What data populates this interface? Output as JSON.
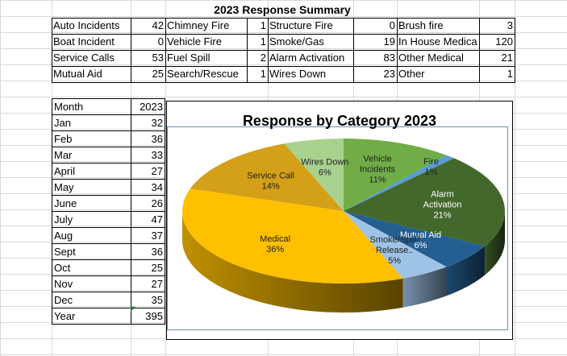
{
  "summary": {
    "title": "2023 Response Summary",
    "rows": [
      [
        {
          "label": "Auto Incidents",
          "value": "42"
        },
        {
          "label": "Chimney Fire",
          "value": "1"
        },
        {
          "label": "Structure Fire",
          "value": "0"
        },
        {
          "label": "Brush fire",
          "value": "3"
        }
      ],
      [
        {
          "label": "Boat Incident",
          "value": "0"
        },
        {
          "label": "Vehicle Fire",
          "value": "1"
        },
        {
          "label": "Smoke/Gas",
          "value": "19"
        },
        {
          "label": "In House Medica",
          "value": "120"
        }
      ],
      [
        {
          "label": "Service Calls",
          "value": "53"
        },
        {
          "label": "Fuel Spill",
          "value": "2"
        },
        {
          "label": "Alarm Activation",
          "value": "83"
        },
        {
          "label": "Other Medical",
          "value": "21"
        }
      ],
      [
        {
          "label": "Mutual Aid",
          "value": "25"
        },
        {
          "label": "Search/Rescue",
          "value": "1"
        },
        {
          "label": "Wires Down",
          "value": "23"
        },
        {
          "label": "Other",
          "value": "1"
        }
      ]
    ]
  },
  "monthly": {
    "header": {
      "label": "Month",
      "value": "2023"
    },
    "rows": [
      {
        "label": "Jan",
        "value": "32"
      },
      {
        "label": "Feb",
        "value": "36"
      },
      {
        "label": "Mar",
        "value": "33"
      },
      {
        "label": "April",
        "value": "27"
      },
      {
        "label": "May",
        "value": "34"
      },
      {
        "label": "June",
        "value": "26"
      },
      {
        "label": "July",
        "value": "47"
      },
      {
        "label": "Aug",
        "value": "37"
      },
      {
        "label": "Sept",
        "value": "36"
      },
      {
        "label": "Oct",
        "value": "25"
      },
      {
        "label": "Nov",
        "value": "27"
      },
      {
        "label": "Dec",
        "value": "35"
      }
    ],
    "total": {
      "label": "Year",
      "value": "395"
    }
  },
  "chart_data": {
    "type": "pie",
    "title": "Response by Category 2023",
    "slices": [
      {
        "name": "Vehicle Incidents",
        "label_lines": [
          "Vehicle",
          "Incidents"
        ],
        "pct_label": "11%",
        "value": 11,
        "color": "#70ad47"
      },
      {
        "name": "Fire",
        "label_lines": [
          "Fire"
        ],
        "pct_label": "1%",
        "value": 1,
        "color": "#5b9bd5"
      },
      {
        "name": "Alarm Activation",
        "label_lines": [
          "Alarm",
          "Activation"
        ],
        "pct_label": "21%",
        "value": 21,
        "color": "#43682b"
      },
      {
        "name": "Mutual Aid",
        "label_lines": [
          "Mutual Aid"
        ],
        "pct_label": "6%",
        "value": 6,
        "color": "#255e91"
      },
      {
        "name": "Smoke/Spill/Release..",
        "label_lines": [
          "Smoke/Spill/",
          "Release.."
        ],
        "pct_label": "5%",
        "value": 5,
        "color": "#9dc3e6"
      },
      {
        "name": "Medical",
        "label_lines": [
          "Medical"
        ],
        "pct_label": "36%",
        "value": 36,
        "color": "#ffc000"
      },
      {
        "name": "Service Call",
        "label_lines": [
          "Service Call"
        ],
        "pct_label": "14%",
        "value": 14,
        "color": "#d4a017"
      },
      {
        "name": "Wires Down",
        "label_lines": [
          "Wires Down"
        ],
        "pct_label": "6%",
        "value": 6,
        "color": "#a9d18e"
      }
    ]
  }
}
